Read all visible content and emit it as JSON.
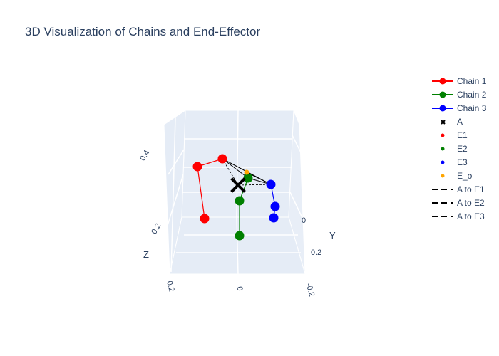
{
  "title": "3D Visualization of Chains and End-Effector",
  "chart_data": {
    "type": "scatter3d",
    "title": "3D Visualization of Chains and End-Effector",
    "axes": {
      "x": {
        "label": "",
        "ticks": [
          "0.2",
          "0",
          "-0.2"
        ]
      },
      "y": {
        "label": "Y",
        "ticks": [
          "0",
          "0.2"
        ]
      },
      "z": {
        "label": "Z",
        "ticks": [
          "0.2",
          "0.4"
        ]
      }
    },
    "series": [
      {
        "name": "Chain 1",
        "mode": "lines+markers",
        "color": "#ff0000"
      },
      {
        "name": "Chain 2",
        "mode": "lines+markers",
        "color": "#008000"
      },
      {
        "name": "Chain 3",
        "mode": "lines+markers",
        "color": "#0000ff"
      },
      {
        "name": "A",
        "mode": "markers",
        "symbol": "x",
        "color": "#000000"
      },
      {
        "name": "E1",
        "mode": "markers",
        "color": "#ff0000"
      },
      {
        "name": "E2",
        "mode": "markers",
        "color": "#008000"
      },
      {
        "name": "E3",
        "mode": "markers",
        "color": "#0000ff"
      },
      {
        "name": "E_o",
        "mode": "markers",
        "color": "#ffa500"
      },
      {
        "name": "A to E1",
        "mode": "lines",
        "dash": "dash",
        "color": "#000000"
      },
      {
        "name": "A to E2",
        "mode": "lines",
        "dash": "dash",
        "color": "#000000"
      },
      {
        "name": "A to E3",
        "mode": "lines",
        "dash": "dash",
        "color": "#000000"
      }
    ],
    "legend_position": "top-right",
    "grid": true
  }
}
